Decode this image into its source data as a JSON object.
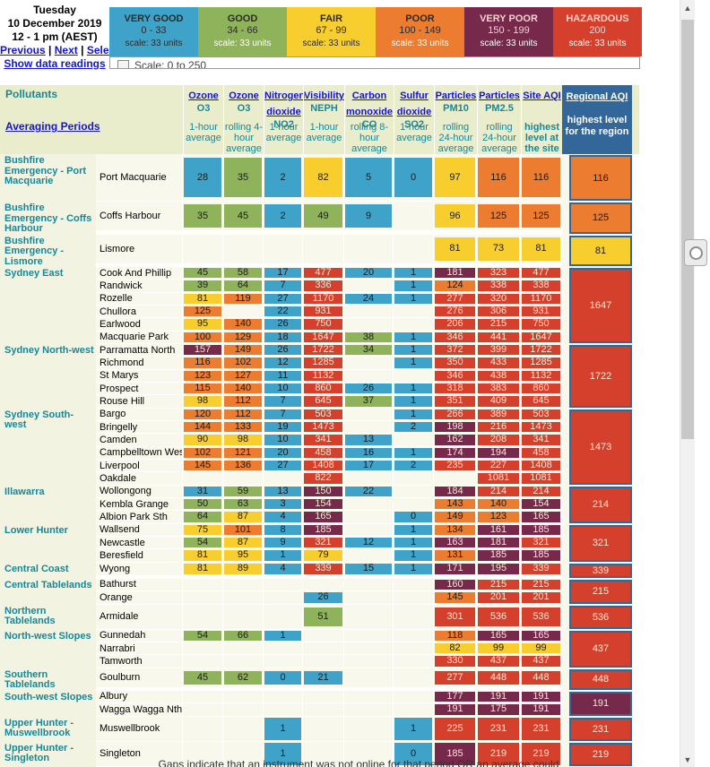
{
  "page": {
    "date_line1": "Tuesday",
    "date_line2": "10 December 2019",
    "date_line3": "12 - 1 pm (AEST)",
    "nav": {
      "previous": "Previous",
      "next": "Next",
      "select": "Select",
      "separator": "|",
      "show_data": "Show data readings"
    },
    "footnote": "Gaps indicate that an instrument was not online for that period OR an average could"
  },
  "colors": {
    "categories": {
      "very_good": "#3FA3C9",
      "good": "#8FB35A",
      "fair": "#F8CE2F",
      "poor": "#EC7C30",
      "very_poor": "#76294B",
      "hazardous": "#D5402C"
    },
    "regional_blue": "#336699",
    "header_beige": "#EAEDCB",
    "teal": "#178799",
    "link_blue": "#1414CE"
  },
  "legend": {
    "partial_scale_label": "Scale: 0 to 250",
    "categories": [
      {
        "label": "VERY GOOD",
        "range": "0 - 33",
        "scale": "scale: 33 units"
      },
      {
        "label": "GOOD",
        "range": "34 - 66",
        "scale": "scale: 33 units"
      },
      {
        "label": "FAIR",
        "range": "67 - 99",
        "scale": "scale: 33 units"
      },
      {
        "label": "POOR",
        "range": "100 - 149",
        "scale": "scale: 33 units"
      },
      {
        "label": "VERY POOR",
        "range": "150 - 199",
        "scale": "scale: 33 units"
      },
      {
        "label": "HAZARDOUS",
        "range": "200",
        "scale": "scale: 33 units"
      }
    ]
  },
  "table": {
    "pollutants_label": "Pollutants",
    "averaging_label": "Averaging Periods",
    "columns": [
      {
        "name": "Ozone",
        "formula": "O3",
        "period": "1-hour average"
      },
      {
        "name": "Ozone",
        "formula": "O3",
        "period": "rolling 4-hour average"
      },
      {
        "name": "Nitrogen dioxide",
        "formula": "NO2",
        "period": "1-hour average"
      },
      {
        "name": "Visibility",
        "formula": "NEPH",
        "period": "1-hour average"
      },
      {
        "name": "Carbon monoxide",
        "formula": "CO",
        "period": "rolling 8-hour average"
      },
      {
        "name": "Sulfur dioxide",
        "formula": "SO2",
        "period": "1-hour average"
      },
      {
        "name": "Particles",
        "formula": "PM10",
        "period": "rolling 24-hour average"
      },
      {
        "name": "Particles",
        "formula": "PM2.5",
        "period": "rolling 24-hour average"
      }
    ],
    "site_aqi_header": {
      "link": "Site AQI",
      "sub": "highest level at the site"
    },
    "regional_aqi_header": {
      "link": "Regional AQI",
      "sub": "highest level for the region"
    },
    "groups": [
      {
        "region": "Bushfire Emergency - Port Macquarie",
        "regional": "116|p",
        "sites": [
          {
            "name": "Port Macquarie",
            "cells": [
              "28|vg",
              "35|g",
              "2|vg",
              "82|f",
              "5|vg",
              "0|vg",
              "97|f",
              "116|p",
              "116|p"
            ]
          }
        ]
      },
      {
        "region": "Bushfire Emergency - Coffs Harbour",
        "regional": "125|p",
        "sites": [
          {
            "name": "Coffs Harbour",
            "cells": [
              "35|g",
              "45|g",
              "2|vg",
              "49|g",
              "9|vg",
              null,
              "96|f",
              "125|p",
              "125|p"
            ]
          }
        ]
      },
      {
        "region": "Bushfire Emergency - Lismore",
        "regional": "81|f",
        "sites": [
          {
            "name": "Lismore",
            "cells": [
              null,
              null,
              null,
              null,
              null,
              null,
              "81|f",
              "73|f",
              "81|f"
            ]
          }
        ]
      },
      {
        "region": "Sydney East",
        "regional": "1647|h",
        "sites": [
          {
            "name": "Cook And Phillip",
            "cells": [
              "45|g",
              "58|g",
              "17|vg",
              "477|h",
              "20|vg",
              "1|vg",
              "181|vp",
              "323|h",
              "477|h"
            ]
          },
          {
            "name": "Randwick",
            "cells": [
              "39|g",
              "64|g",
              "7|vg",
              "336|h",
              null,
              "1|vg",
              "124|p",
              "338|h",
              "338|h"
            ]
          },
          {
            "name": "Rozelle",
            "cells": [
              "81|f",
              "119|p",
              "27|vg",
              "1170|h",
              "24|vg",
              "1|vg",
              "277|h",
              "320|h",
              "1170|h"
            ]
          },
          {
            "name": "Chullora",
            "cells": [
              "125|p",
              null,
              "22|vg",
              "931|h",
              null,
              null,
              "276|h",
              "306|h",
              "931|h"
            ]
          },
          {
            "name": "Earlwood",
            "cells": [
              "95|f",
              "140|p",
              "26|vg",
              "750|h",
              null,
              null,
              "206|h",
              "215|h",
              "750|h"
            ]
          },
          {
            "name": "Macquarie Park",
            "cells": [
              "100|p",
              "129|p",
              "18|vg",
              "1647|h",
              "38|g",
              "1|vg",
              "346|h",
              "441|h",
              "1647|h"
            ]
          }
        ]
      },
      {
        "region": "Sydney North-west",
        "regional": "1722|h",
        "sites": [
          {
            "name": "Parramatta North",
            "cells": [
              "157|vp",
              "149|p",
              "26|vg",
              "1722|h",
              "34|g",
              "1|vg",
              "372|h",
              "399|h",
              "1722|h"
            ]
          },
          {
            "name": "Richmond",
            "cells": [
              "116|p",
              "102|p",
              "12|vg",
              "1285|h",
              null,
              "1|vg",
              "350|h",
              "433|h",
              "1285|h"
            ]
          },
          {
            "name": "St Marys",
            "cells": [
              "123|p",
              "127|p",
              "11|vg",
              "1132|h",
              null,
              null,
              "346|h",
              "438|h",
              "1132|h"
            ]
          },
          {
            "name": "Prospect",
            "cells": [
              "115|p",
              "140|p",
              "10|vg",
              "860|h",
              "26|vg",
              "1|vg",
              "318|h",
              "383|h",
              "860|h"
            ]
          },
          {
            "name": "Rouse Hill",
            "cells": [
              "98|f",
              "112|p",
              "7|vg",
              "645|h",
              "37|g",
              "1|vg",
              "351|h",
              "409|h",
              "645|h"
            ]
          }
        ]
      },
      {
        "region": "Sydney South-west",
        "regional": "1473|h",
        "sites": [
          {
            "name": "Bargo",
            "cells": [
              "120|p",
              "112|p",
              "7|vg",
              "503|h",
              null,
              "1|vg",
              "266|h",
              "389|h",
              "503|h"
            ]
          },
          {
            "name": "Bringelly",
            "cells": [
              "144|p",
              "133|p",
              "19|vg",
              "1473|h",
              null,
              "2|vg",
              "198|vp",
              "216|h",
              "1473|h"
            ]
          },
          {
            "name": "Camden",
            "cells": [
              "90|f",
              "98|f",
              "10|vg",
              "341|h",
              "13|vg",
              null,
              "162|vp",
              "208|h",
              "341|h"
            ]
          },
          {
            "name": "Campbelltown West",
            "cells": [
              "102|p",
              "121|p",
              "20|vg",
              "458|h",
              "16|vg",
              "1|vg",
              "174|vp",
              "194|vp",
              "458|h"
            ]
          },
          {
            "name": "Liverpool",
            "cells": [
              "145|p",
              "136|p",
              "27|vg",
              "1408|h",
              "17|vg",
              "2|vg",
              "235|h",
              "227|h",
              "1408|h"
            ]
          },
          {
            "name": "Oakdale",
            "cells": [
              null,
              null,
              null,
              "822|h",
              null,
              null,
              null,
              "1081|h",
              "1081|h"
            ]
          }
        ]
      },
      {
        "region": "Illawarra",
        "regional": "214|h",
        "sites": [
          {
            "name": "Wollongong",
            "cells": [
              "31|vg",
              "59|g",
              "13|vg",
              "150|vp",
              "22|vg",
              null,
              "184|vp",
              "214|h",
              "214|h"
            ]
          },
          {
            "name": "Kembla Grange",
            "cells": [
              "50|g",
              "63|g",
              "3|vg",
              "154|vp",
              null,
              null,
              "143|p",
              "140|p",
              "154|vp"
            ]
          },
          {
            "name": "Albion Park Sth",
            "cells": [
              "64|g",
              "87|f",
              "4|vg",
              "165|vp",
              null,
              "0|vg",
              "149|p",
              "123|p",
              "165|vp"
            ]
          }
        ]
      },
      {
        "region": "Lower Hunter",
        "regional": "321|h",
        "sites": [
          {
            "name": "Wallsend",
            "cells": [
              "75|f",
              "101|p",
              "8|vg",
              "185|vp",
              null,
              "1|vg",
              "134|p",
              "161|vp",
              "185|vp"
            ]
          },
          {
            "name": "Newcastle",
            "cells": [
              "54|g",
              "87|f",
              "9|vg",
              "321|h",
              "12|vg",
              "1|vg",
              "163|vp",
              "181|vp",
              "321|h"
            ]
          },
          {
            "name": "Beresfield",
            "cells": [
              "81|f",
              "95|f",
              "1|vg",
              "79|f",
              null,
              "1|vg",
              "131|p",
              "185|vp",
              "185|vp"
            ]
          }
        ]
      },
      {
        "region": "Central Coast",
        "regional": "339|h",
        "sites": [
          {
            "name": "Wyong",
            "cells": [
              "81|f",
              "89|f",
              "4|vg",
              "339|h",
              "15|vg",
              "1|vg",
              "171|vp",
              "195|vp",
              "339|h"
            ]
          }
        ]
      },
      {
        "region": "Central Tablelands",
        "regional": "215|h",
        "sites": [
          {
            "name": "Bathurst",
            "cells": [
              null,
              null,
              null,
              null,
              null,
              null,
              "160|vp",
              "215|h",
              "215|h"
            ]
          },
          {
            "name": "Orange",
            "cells": [
              null,
              null,
              null,
              "26|vg",
              null,
              null,
              "145|p",
              "201|h",
              "201|h"
            ]
          }
        ]
      },
      {
        "region": "Northern Tablelands",
        "regional": "536|h",
        "sites": [
          {
            "name": "Armidale",
            "cells": [
              null,
              null,
              null,
              "51|g",
              null,
              null,
              "301|h",
              "536|h",
              "536|h"
            ]
          }
        ]
      },
      {
        "region": "North-west Slopes",
        "regional": "437|h",
        "sites": [
          {
            "name": "Gunnedah",
            "cells": [
              "54|g",
              "66|g",
              "1|vg",
              null,
              null,
              null,
              "118|p",
              "165|vp",
              "165|vp"
            ]
          },
          {
            "name": "Narrabri",
            "cells": [
              null,
              null,
              null,
              null,
              null,
              null,
              "82|f",
              "99|f",
              "99|f"
            ]
          },
          {
            "name": "Tamworth",
            "cells": [
              null,
              null,
              null,
              null,
              null,
              null,
              "330|h",
              "437|h",
              "437|h"
            ]
          }
        ]
      },
      {
        "region": "Southern Tablelands",
        "regional": "448|h",
        "sites": [
          {
            "name": "Goulburn",
            "cells": [
              "45|g",
              "62|g",
              "0|vg",
              "21|vg",
              null,
              null,
              "277|h",
              "448|h",
              "448|h"
            ]
          }
        ]
      },
      {
        "region": "South-west Slopes",
        "regional": "191|vp",
        "sites": [
          {
            "name": "Albury",
            "cells": [
              null,
              null,
              null,
              null,
              null,
              null,
              "177|vp",
              "191|vp",
              "191|vp"
            ]
          },
          {
            "name": "Wagga Wagga Nth",
            "cells": [
              null,
              null,
              null,
              null,
              null,
              null,
              "191|vp",
              "175|vp",
              "191|vp"
            ]
          }
        ]
      },
      {
        "region": "Upper Hunter - Muswellbrook",
        "regional": "231|h",
        "sites": [
          {
            "name": "Muswellbrook",
            "cells": [
              null,
              null,
              "1|vg",
              null,
              null,
              "1|vg",
              "225|h",
              "231|h",
              "231|h"
            ]
          }
        ]
      },
      {
        "region": "Upper Hunter - Singleton",
        "regional": "219|h",
        "sites": [
          {
            "name": "Singleton",
            "cells": [
              null,
              null,
              "1|vg",
              null,
              null,
              "0|vg",
              "185|vp",
              "219|h",
              "219|h"
            ]
          }
        ]
      }
    ]
  }
}
